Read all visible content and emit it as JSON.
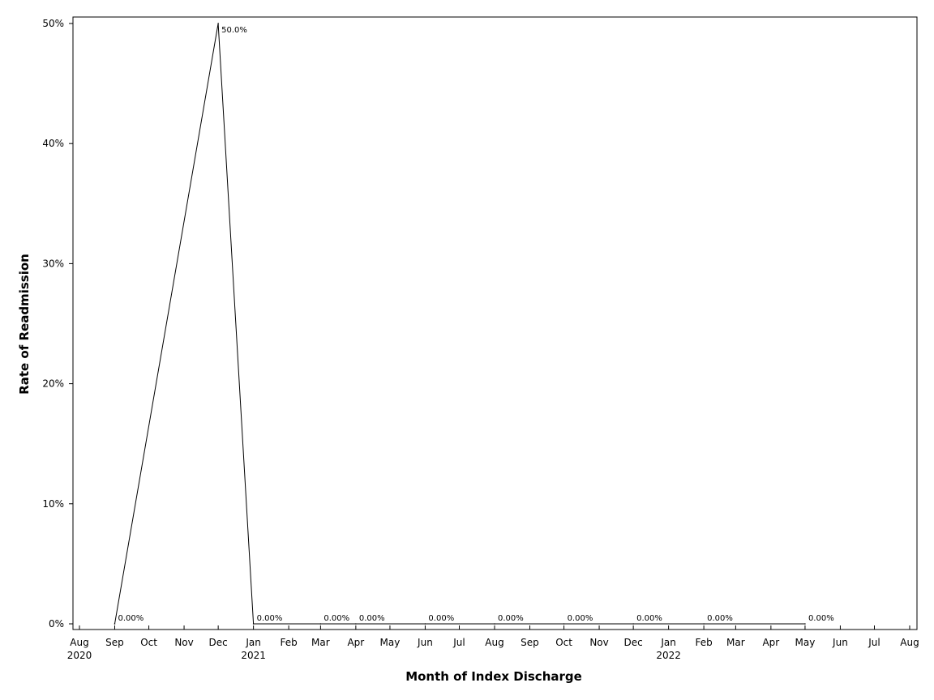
{
  "chart_data": {
    "type": "line",
    "title": "",
    "xlabel": "Month of Index Discharge",
    "ylabel": "Rate of Readmission",
    "ylim": [
      0,
      50
    ],
    "xlim": [
      "2020-08-01",
      "2022-08-01"
    ],
    "y_ticks": [
      0,
      10,
      20,
      30,
      40,
      50
    ],
    "y_tick_labels": [
      "0%",
      "10%",
      "20%",
      "30%",
      "40%",
      "50%"
    ],
    "x_ticks": [
      "2020-08-01",
      "2020-09-01",
      "2020-10-01",
      "2020-11-01",
      "2020-12-01",
      "2021-01-01",
      "2021-02-01",
      "2021-03-01",
      "2021-04-01",
      "2021-05-01",
      "2021-06-01",
      "2021-07-01",
      "2021-08-01",
      "2021-09-01",
      "2021-10-01",
      "2021-11-01",
      "2021-12-01",
      "2022-01-01",
      "2022-02-01",
      "2022-03-01",
      "2022-04-01",
      "2022-05-01",
      "2022-06-01",
      "2022-07-01",
      "2022-08-01"
    ],
    "x_tick_labels": [
      "Aug",
      "Sep",
      "Oct",
      "Nov",
      "Dec",
      "Jan",
      "Feb",
      "Mar",
      "Apr",
      "May",
      "Jun",
      "Jul",
      "Aug",
      "Sep",
      "Oct",
      "Nov",
      "Dec",
      "Jan",
      "Feb",
      "Mar",
      "Apr",
      "May",
      "Jun",
      "Jul",
      "Aug"
    ],
    "x_year_labels": [
      {
        "date": "2020-08-01",
        "label": "2020"
      },
      {
        "date": "2021-01-01",
        "label": "2021"
      },
      {
        "date": "2022-01-01",
        "label": "2022"
      }
    ],
    "grid": false,
    "series": [
      {
        "color": "#000000",
        "points": [
          {
            "x": "2020-09-01",
            "y": 0,
            "label": "0.00%"
          },
          {
            "x": "2020-12-01",
            "y": 50,
            "label": "50.0%"
          },
          {
            "x": "2021-01-01",
            "y": 0,
            "label": "0.00%"
          },
          {
            "x": "2021-03-01",
            "y": 0,
            "label": "0.00%"
          },
          {
            "x": "2021-04-01",
            "y": 0,
            "label": "0.00%"
          },
          {
            "x": "2021-06-01",
            "y": 0,
            "label": "0.00%"
          },
          {
            "x": "2021-08-01",
            "y": 0,
            "label": "0.00%"
          },
          {
            "x": "2021-10-01",
            "y": 0,
            "label": "0.00%"
          },
          {
            "x": "2021-12-01",
            "y": 0,
            "label": "0.00%"
          },
          {
            "x": "2022-02-01",
            "y": 0,
            "label": "0.00%"
          },
          {
            "x": "2022-05-01",
            "y": 0,
            "label": "0.00%"
          }
        ]
      }
    ]
  }
}
